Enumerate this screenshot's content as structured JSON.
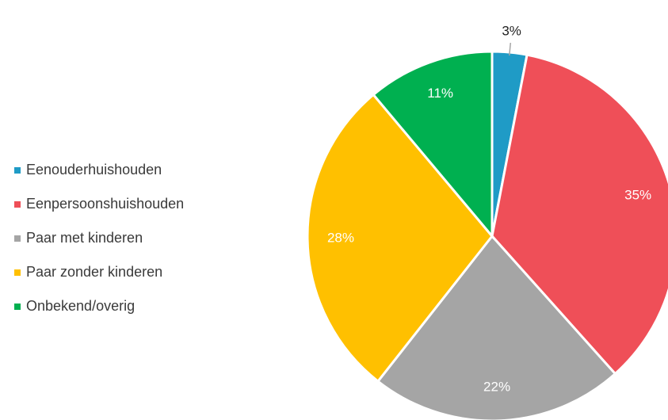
{
  "chart_data": {
    "type": "pie",
    "categories": [
      "Eenouderhuishouden",
      "Eenpersoonshuishouden",
      "Paar met kinderen",
      "Paar zonder kinderen",
      "Onbekend/overig"
    ],
    "values": [
      3,
      35,
      22,
      28,
      11
    ],
    "value_labels": [
      "3%",
      "35%",
      "22%",
      "28%",
      "11%"
    ],
    "colors": [
      "#1f9bc6",
      "#ef4f58",
      "#a5a5a5",
      "#ffc000",
      "#00b050"
    ],
    "legend": "left"
  }
}
